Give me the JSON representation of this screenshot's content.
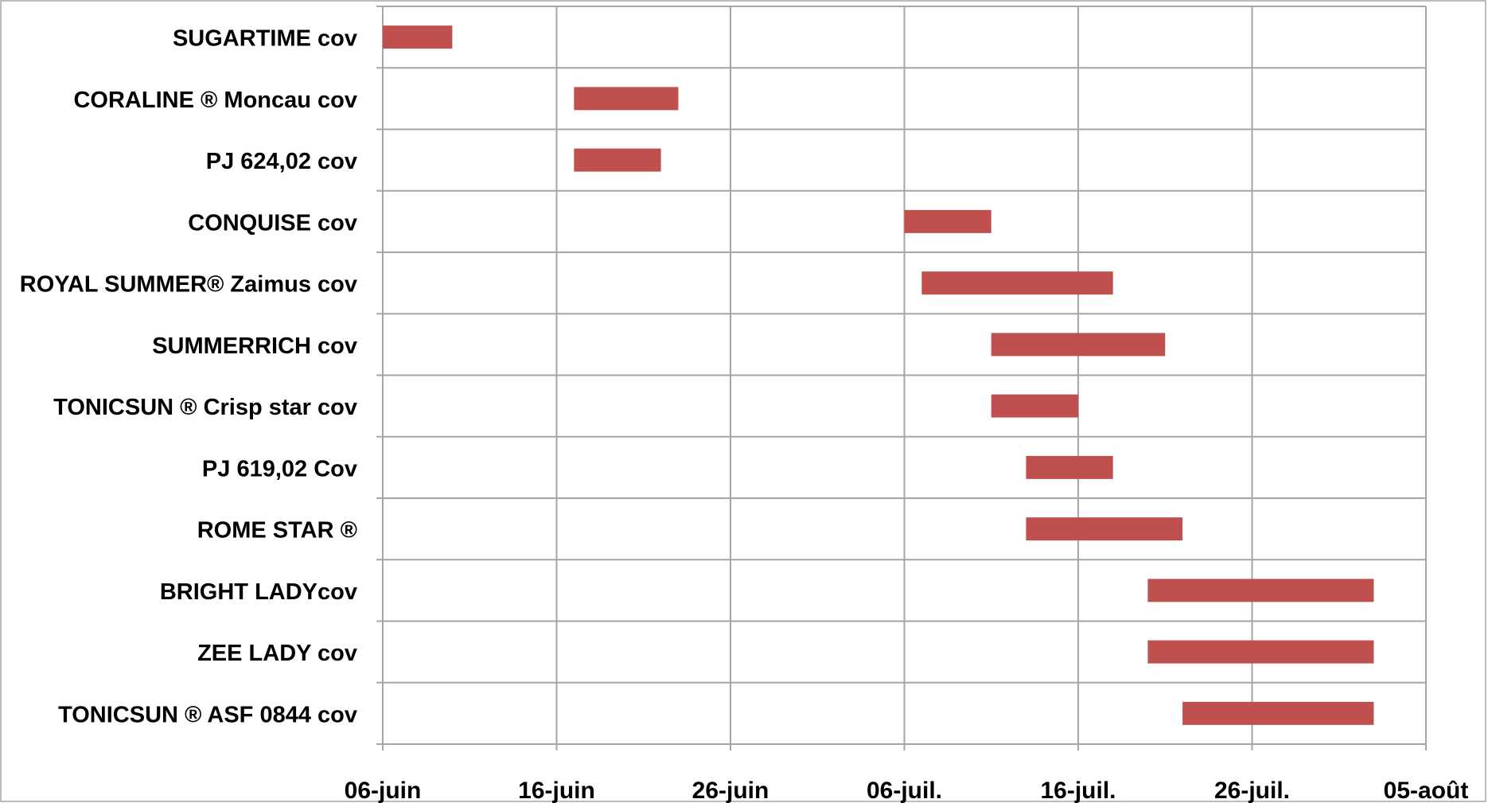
{
  "chart_data": {
    "type": "bar",
    "orientation": "horizontal-range",
    "title": "",
    "xlabel": "",
    "ylabel": "",
    "x_ticks": [
      {
        "date": "2000-06-06",
        "label": "06-juin"
      },
      {
        "date": "2000-06-16",
        "label": "16-juin"
      },
      {
        "date": "2000-06-26",
        "label": "26-juin"
      },
      {
        "date": "2000-07-06",
        "label": "06-juil."
      },
      {
        "date": "2000-07-16",
        "label": "16-juil."
      },
      {
        "date": "2000-07-26",
        "label": "26-juil."
      },
      {
        "date": "2000-08-05",
        "label": "05-août"
      }
    ],
    "xlim": [
      "2000-06-06",
      "2000-08-05"
    ],
    "grid": true,
    "bar_color": "#c0504d",
    "grid_color": "#a6a6a6",
    "categories": [
      "SUGARTIME cov",
      "CORALINE ® Moncau cov",
      "PJ 624,02 cov",
      "CONQUISE cov",
      "ROYAL SUMMER® Zaimus cov",
      "SUMMERRICH cov",
      "TONICSUN ® Crisp star cov",
      "PJ 619,02 Cov",
      "ROME STAR ®",
      "BRIGHT LADYcov",
      "ZEE LADY  cov",
      "TONICSUN ® ASF 0844 cov"
    ],
    "ranges": [
      {
        "start": "2000-06-06",
        "end": "2000-06-10"
      },
      {
        "start": "2000-06-17",
        "end": "2000-06-23"
      },
      {
        "start": "2000-06-17",
        "end": "2000-06-22"
      },
      {
        "start": "2000-07-06",
        "end": "2000-07-11"
      },
      {
        "start": "2000-07-07",
        "end": "2000-07-18"
      },
      {
        "start": "2000-07-11",
        "end": "2000-07-21"
      },
      {
        "start": "2000-07-11",
        "end": "2000-07-16"
      },
      {
        "start": "2000-07-13",
        "end": "2000-07-18"
      },
      {
        "start": "2000-07-13",
        "end": "2000-07-22"
      },
      {
        "start": "2000-07-20",
        "end": "2000-08-02"
      },
      {
        "start": "2000-07-20",
        "end": "2000-08-02"
      },
      {
        "start": "2000-07-22",
        "end": "2000-08-02"
      }
    ]
  }
}
